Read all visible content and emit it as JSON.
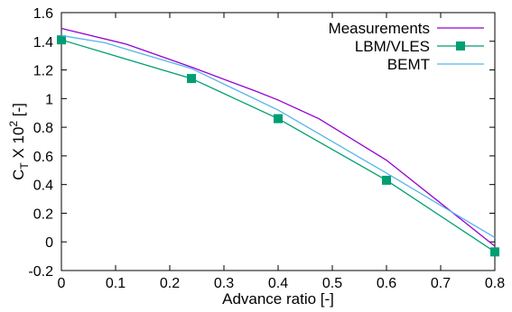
{
  "chart_data": {
    "type": "line",
    "xlabel": "Advance ratio [-]",
    "ylabel": {
      "base": "C",
      "sub": "T",
      "mid": " X 10",
      "sup": "2",
      "tail": " [-]"
    },
    "xlim": [
      0,
      0.8
    ],
    "ylim": [
      -0.2,
      1.6
    ],
    "xticks": [
      "0",
      "0.1",
      "0.2",
      "0.3",
      "0.4",
      "0.5",
      "0.6",
      "0.7",
      "0.8"
    ],
    "yticks": [
      "-0.2",
      "0",
      "0.2",
      "0.4",
      "0.6",
      "0.8",
      "1",
      "1.2",
      "1.4",
      "1.6"
    ],
    "grid": false,
    "legend_position": "top-right",
    "series": [
      {
        "name": "Measurements",
        "color": "#9400D3",
        "marker": "none",
        "x": [
          0,
          0.12,
          0.24,
          0.36,
          0.4,
          0.475,
          0.6,
          0.8
        ],
        "y": [
          1.49,
          1.38,
          1.22,
          1.05,
          0.99,
          0.86,
          0.57,
          -0.03
        ]
      },
      {
        "name": "LBM/VLES",
        "color": "#009E73",
        "marker": "square",
        "x": [
          0,
          0.24,
          0.4,
          0.6,
          0.8
        ],
        "y": [
          1.41,
          1.14,
          0.86,
          0.43,
          -0.07
        ]
      },
      {
        "name": "BEMT",
        "color": "#56B4E9",
        "marker": "none",
        "x": [
          0,
          0.08,
          0.24,
          0.4,
          0.6,
          0.8
        ],
        "y": [
          1.44,
          1.39,
          1.21,
          0.92,
          0.48,
          0.03
        ]
      }
    ]
  }
}
